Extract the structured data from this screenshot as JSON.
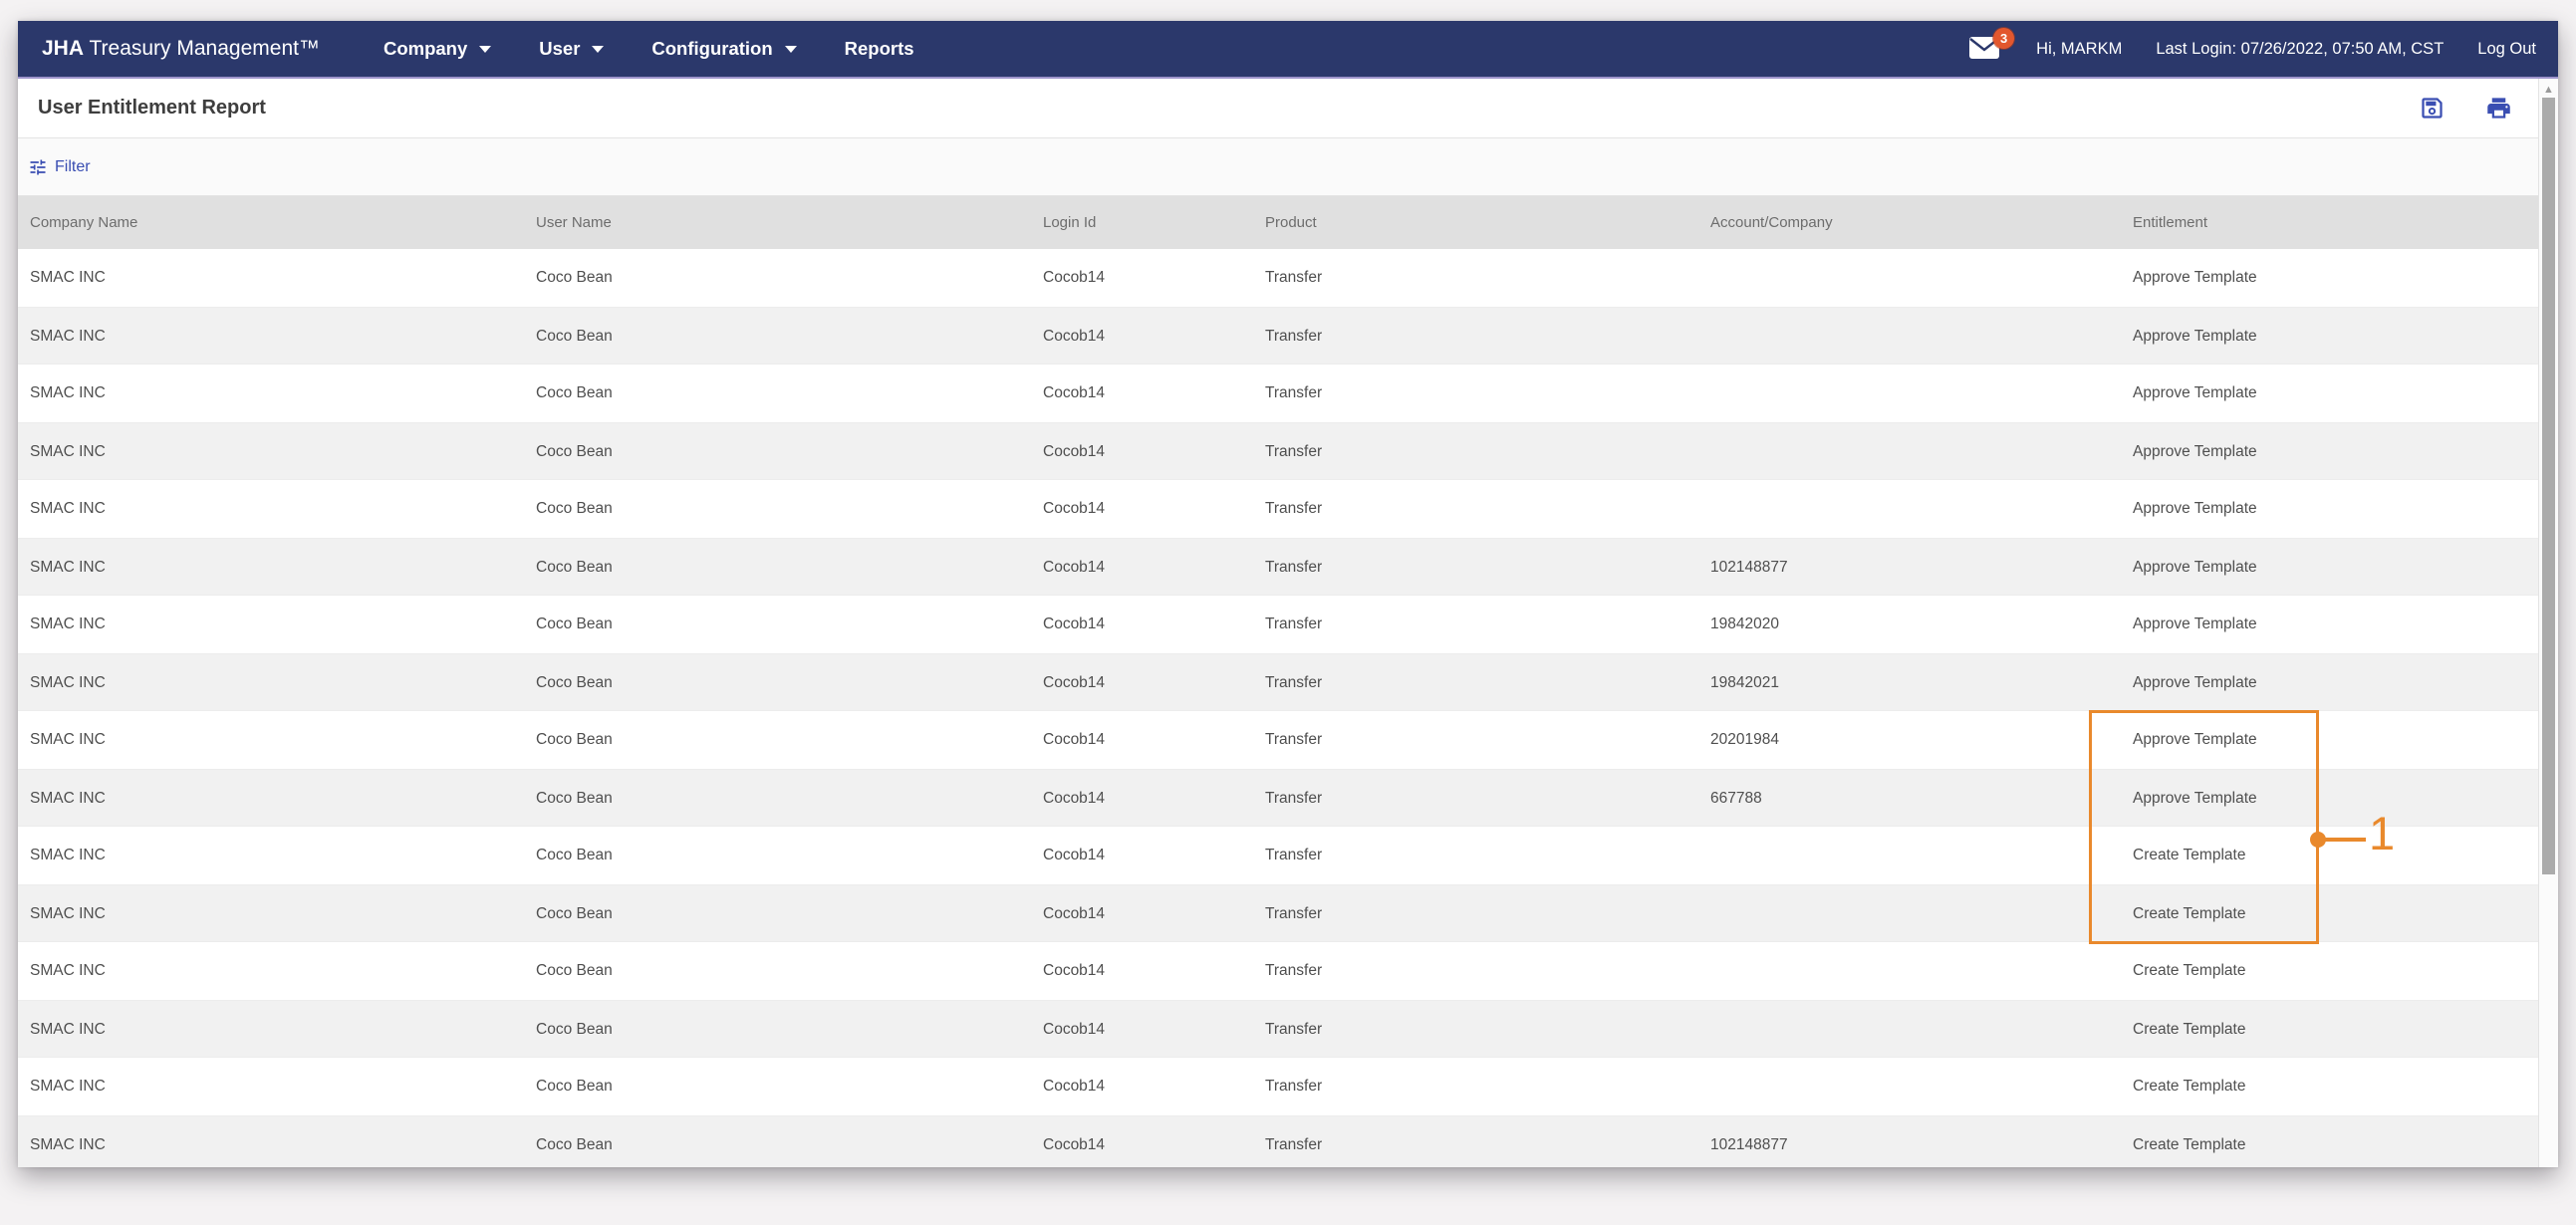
{
  "navbar": {
    "brand_bold": "JHA",
    "brand_rest": " Treasury Management™",
    "items": [
      {
        "label": "Company",
        "caret": true
      },
      {
        "label": "User",
        "caret": true
      },
      {
        "label": "Configuration",
        "caret": true
      },
      {
        "label": "Reports",
        "caret": false
      }
    ],
    "mail_badge": "3",
    "greeting": "Hi, MARKM",
    "last_login": "Last Login: 07/26/2022, 07:50 AM, CST",
    "logout_label": "Log Out"
  },
  "page": {
    "title": "User Entitlement Report"
  },
  "toolbar": {
    "filter_label": "Filter"
  },
  "table": {
    "columns": [
      "Company Name",
      "User Name",
      "Login Id",
      "Product",
      "Account/Company",
      "Entitlement"
    ],
    "rows": [
      [
        "SMAC INC",
        "Coco Bean",
        "Cocob14",
        "Transfer",
        "",
        "Approve Template"
      ],
      [
        "SMAC INC",
        "Coco Bean",
        "Cocob14",
        "Transfer",
        "",
        "Approve Template"
      ],
      [
        "SMAC INC",
        "Coco Bean",
        "Cocob14",
        "Transfer",
        "",
        "Approve Template"
      ],
      [
        "SMAC INC",
        "Coco Bean",
        "Cocob14",
        "Transfer",
        "",
        "Approve Template"
      ],
      [
        "SMAC INC",
        "Coco Bean",
        "Cocob14",
        "Transfer",
        "",
        "Approve Template"
      ],
      [
        "SMAC INC",
        "Coco Bean",
        "Cocob14",
        "Transfer",
        "102148877",
        "Approve Template"
      ],
      [
        "SMAC INC",
        "Coco Bean",
        "Cocob14",
        "Transfer",
        "19842020",
        "Approve Template"
      ],
      [
        "SMAC INC",
        "Coco Bean",
        "Cocob14",
        "Transfer",
        "19842021",
        "Approve Template"
      ],
      [
        "SMAC INC",
        "Coco Bean",
        "Cocob14",
        "Transfer",
        "20201984",
        "Approve Template"
      ],
      [
        "SMAC INC",
        "Coco Bean",
        "Cocob14",
        "Transfer",
        "667788",
        "Approve Template"
      ],
      [
        "SMAC INC",
        "Coco Bean",
        "Cocob14",
        "Transfer",
        "",
        "Create Template"
      ],
      [
        "SMAC INC",
        "Coco Bean",
        "Cocob14",
        "Transfer",
        "",
        "Create Template"
      ],
      [
        "SMAC INC",
        "Coco Bean",
        "Cocob14",
        "Transfer",
        "",
        "Create Template"
      ],
      [
        "SMAC INC",
        "Coco Bean",
        "Cocob14",
        "Transfer",
        "",
        "Create Template"
      ],
      [
        "SMAC INC",
        "Coco Bean",
        "Cocob14",
        "Transfer",
        "",
        "Create Template"
      ],
      [
        "SMAC INC",
        "Coco Bean",
        "Cocob14",
        "Transfer",
        "102148877",
        "Create Template"
      ]
    ]
  },
  "annotation": {
    "label": "1"
  },
  "colors": {
    "navbar_bg": "#2b386b",
    "accent_blue": "#3a4eb2",
    "annotation_orange": "#e9892c",
    "badge_red": "#e2572e",
    "header_bg": "#e0e0e0",
    "row_alt_bg": "#f1f1f1"
  }
}
